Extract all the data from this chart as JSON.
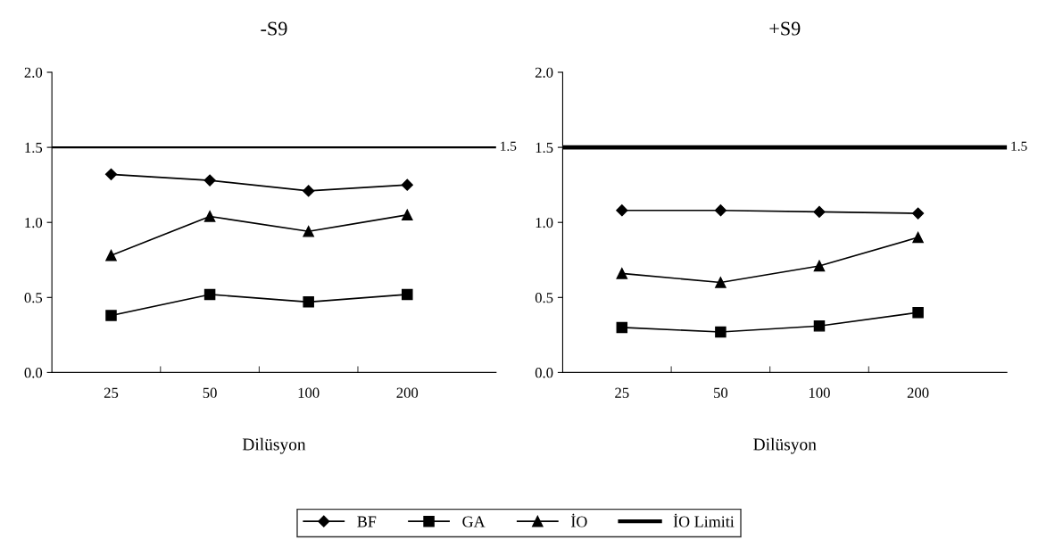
{
  "chart_data": [
    {
      "type": "line",
      "title": "-S9",
      "xlabel": "Dilüsyon",
      "categories": [
        "25",
        "50",
        "100",
        "200"
      ],
      "ylim": [
        0,
        2
      ],
      "yticks": [
        {
          "value": 0,
          "label": "0.0"
        },
        {
          "value": 0.5,
          "label": "0.5"
        },
        {
          "value": 1,
          "label": "1.0"
        },
        {
          "value": 1.5,
          "label": "1.5"
        },
        {
          "value": 2,
          "label": "2.0"
        }
      ],
      "grid": false,
      "legend": "bottom",
      "series": [
        {
          "name": "BF",
          "color": "#000000",
          "marker": "diamond",
          "values": [
            1.32,
            1.28,
            1.21,
            1.25
          ]
        },
        {
          "name": "GA",
          "color": "#000000",
          "marker": "square",
          "values": [
            0.38,
            0.52,
            0.47,
            0.52
          ]
        },
        {
          "name": "İO",
          "color": "#000000",
          "marker": "triangle",
          "values": [
            0.78,
            1.04,
            0.94,
            1.05
          ]
        }
      ],
      "ref_lines": [
        {
          "axis": "y",
          "value": 1.5,
          "label": "İO Limiti",
          "color": "#000000"
        }
      ],
      "annotations": [
        "1.5"
      ]
    },
    {
      "type": "line",
      "title": "+S9",
      "xlabel": "Dilüsyon",
      "categories": [
        "25",
        "50",
        "100",
        "200"
      ],
      "ylim": [
        0,
        2
      ],
      "yticks": [
        {
          "value": 0,
          "label": "0.0"
        },
        {
          "value": 0.5,
          "label": "0.5"
        },
        {
          "value": 1,
          "label": "1.0"
        },
        {
          "value": 1.5,
          "label": "1.5"
        },
        {
          "value": 2,
          "label": "2.0"
        }
      ],
      "grid": false,
      "series": [
        {
          "color": "#000000",
          "marker": "diamond",
          "values": [
            1.08,
            1.08,
            1.07,
            1.06
          ]
        },
        {
          "color": "#000000",
          "marker": "square",
          "values": [
            0.3,
            0.27,
            0.31,
            0.4
          ]
        },
        {
          "color": "#000000",
          "marker": "triangle",
          "values": [
            0.66,
            0.6,
            0.71,
            0.9
          ]
        }
      ],
      "ref_lines": [
        {
          "axis": "y",
          "value": 1.5,
          "color": "#000000"
        }
      ],
      "annotations": [
        "1.5"
      ]
    }
  ]
}
